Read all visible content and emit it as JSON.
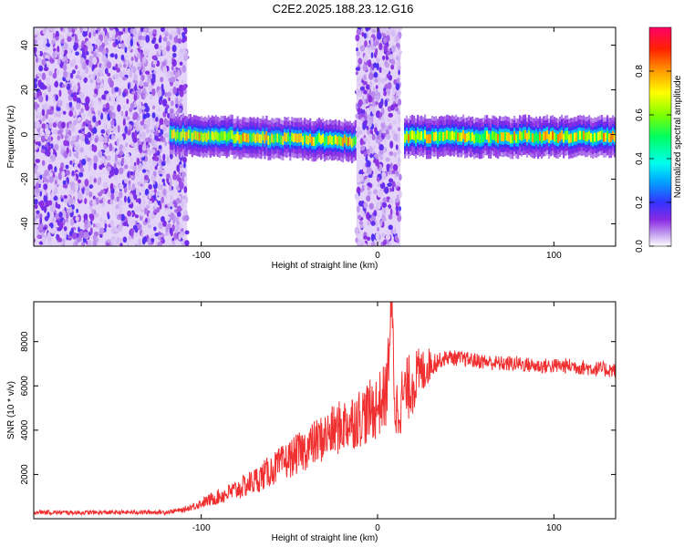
{
  "figure": {
    "title": "C2E2.2025.188.23.12.G16"
  },
  "chart_data": [
    {
      "type": "heatmap",
      "xlabel": "Height of straight line (km)",
      "ylabel": "Frequency (Hz)",
      "xlim": [
        -195,
        135
      ],
      "ylim": [
        -50,
        48
      ],
      "xticks": [
        -100,
        0,
        100
      ],
      "yticks": [
        -40,
        -20,
        0,
        20,
        40
      ],
      "colorbar": {
        "label": "Normalized spectral amplitude",
        "range": [
          0,
          1
        ],
        "ticks": [
          0.0,
          0.2,
          0.4,
          0.6,
          0.8
        ]
      },
      "regions": [
        {
          "kind": "broadband noise",
          "x": [
            -195,
            -108
          ],
          "f": [
            -50,
            48
          ]
        },
        {
          "kind": "narrow signal",
          "x": [
            -118,
            -13
          ],
          "f_center_start": 0,
          "f_center_end": -3
        },
        {
          "kind": "broadband noise",
          "x": [
            -12,
            13
          ],
          "f": [
            -50,
            48
          ]
        },
        {
          "kind": "narrow signal",
          "x": [
            15,
            135
          ],
          "f_center": -1
        }
      ]
    },
    {
      "type": "line",
      "xlabel": "Height of straight line (km)",
      "ylabel": "SNR (10 * v/v)",
      "xlim": [
        -195,
        135
      ],
      "ylim": [
        0,
        9800
      ],
      "xticks": [
        -100,
        0,
        100
      ],
      "yticks": [
        2000,
        4000,
        6000,
        8000
      ],
      "series": [
        {
          "color": "#f03030",
          "x": [
            -195,
            -180,
            -160,
            -140,
            -120,
            -110,
            -100,
            -90,
            -80,
            -70,
            -60,
            -50,
            -40,
            -30,
            -20,
            -15,
            -10,
            -5,
            0,
            5,
            8,
            10,
            15,
            20,
            30,
            40,
            50,
            60,
            70,
            80,
            90,
            100,
            110,
            120,
            135
          ],
          "y": [
            300,
            280,
            280,
            290,
            300,
            400,
            700,
            1000,
            1300,
            1700,
            2200,
            2700,
            3200,
            3700,
            4200,
            4400,
            4600,
            4800,
            5100,
            5600,
            9800,
            4800,
            5600,
            6200,
            7000,
            7300,
            7200,
            7100,
            7000,
            7000,
            6900,
            6900,
            6900,
            6800,
            6700
          ],
          "noise_amplitude_start": 100,
          "noise_amplitude_mid": 1500,
          "noise_amplitude_end": 350
        }
      ]
    }
  ]
}
